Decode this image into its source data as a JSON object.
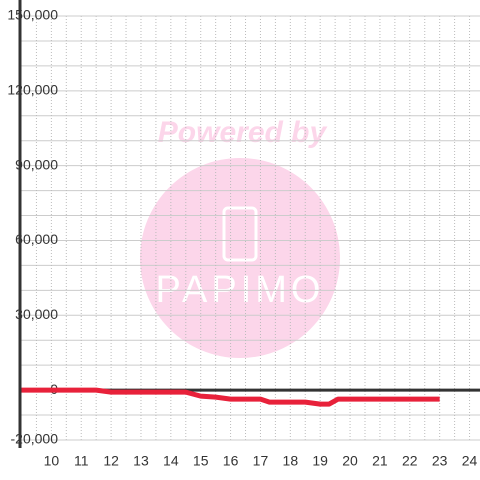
{
  "chart_data": {
    "type": "line",
    "watermark_text": "Powered by",
    "watermark_brand": "PAPIMO",
    "x": [
      9,
      11.5,
      12,
      14.5,
      15,
      15.5,
      16,
      17,
      17.3,
      18.5,
      19,
      19.3,
      19.6,
      23
    ],
    "series": [
      {
        "color": "#e8213a",
        "values": [
          0,
          0,
          -800,
          -800,
          -2400,
          -2800,
          -3600,
          -3600,
          -4800,
          -4800,
          -5600,
          -5600,
          -3600,
          -3600
        ]
      }
    ],
    "xlim": [
      8.95,
      24.35
    ],
    "xticks": [
      10,
      11,
      12,
      13,
      14,
      15,
      16,
      17,
      18,
      19,
      20,
      21,
      22,
      23,
      24
    ],
    "xminor_ticks": [
      9.5,
      10,
      10.5,
      11,
      11.5,
      12,
      12.5,
      13,
      13.5,
      14,
      14.5,
      15,
      15.5,
      16,
      16.5,
      17,
      17.5,
      18,
      18.5,
      19,
      19.5,
      20,
      20.5,
      21,
      21.5,
      22,
      22.5,
      23,
      23.5,
      24
    ],
    "ylim": [
      -20000,
      150000
    ],
    "yticks": [
      {
        "value": -20000,
        "label": "-20,000"
      },
      0,
      {
        "value": 30000,
        "label": "30,000"
      },
      {
        "value": 60000,
        "label": "60,000"
      },
      {
        "value": 90000,
        "label": "90,000"
      },
      {
        "value": 120000,
        "label": "120,000"
      },
      {
        "value": 150000,
        "label": "150,000"
      }
    ],
    "yminor_ticks": [
      -10000,
      10000,
      20000,
      40000,
      50000,
      70000,
      80000,
      100000,
      110000,
      130000,
      140000
    ],
    "grid": true
  }
}
